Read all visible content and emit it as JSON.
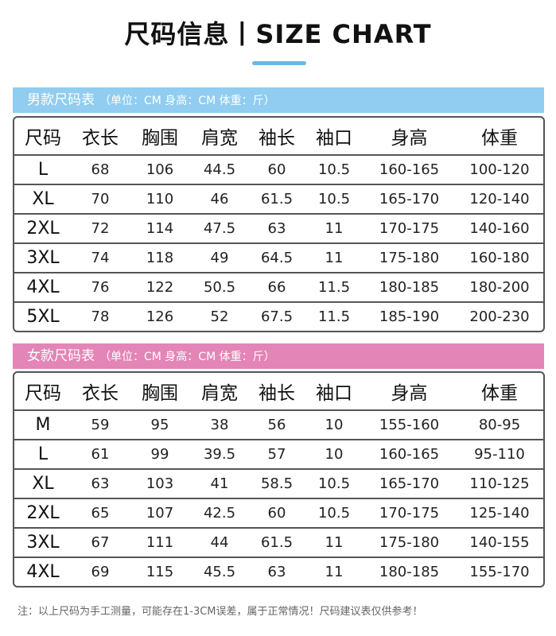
{
  "title": "尺码信息丨SIZE CHART",
  "men": {
    "header": "男款尺码表",
    "unit": "（单位：CM  身高：CM  体重：斤）",
    "columns": [
      "尺码",
      "衣长",
      "胸围",
      "肩宽",
      "袖长",
      "袖口",
      "身高",
      "体重"
    ],
    "rows": [
      [
        "L",
        "68",
        "106",
        "44.5",
        "60",
        "10.5",
        "160-165",
        "100-120"
      ],
      [
        "XL",
        "70",
        "110",
        "46",
        "61.5",
        "10.5",
        "165-170",
        "120-140"
      ],
      [
        "2XL",
        "72",
        "114",
        "47.5",
        "63",
        "11",
        "170-175",
        "140-160"
      ],
      [
        "3XL",
        "74",
        "118",
        "49",
        "64.5",
        "11",
        "175-180",
        "160-180"
      ],
      [
        "4XL",
        "76",
        "122",
        "50.5",
        "66",
        "11.5",
        "180-185",
        "180-200"
      ],
      [
        "5XL",
        "78",
        "126",
        "52",
        "67.5",
        "11.5",
        "185-190",
        "200-230"
      ]
    ]
  },
  "women": {
    "header": "女款尺码表",
    "unit": "（单位：CM  身高：CM  体重：斤）",
    "columns": [
      "尺码",
      "衣长",
      "胸围",
      "肩宽",
      "袖长",
      "袖口",
      "身高",
      "体重"
    ],
    "rows": [
      [
        "M",
        "59",
        "95",
        "38",
        "56",
        "10",
        "155-160",
        "80-95"
      ],
      [
        "L",
        "61",
        "99",
        "39.5",
        "57",
        "10",
        "160-165",
        "95-110"
      ],
      [
        "XL",
        "63",
        "103",
        "41",
        "58.5",
        "10.5",
        "165-170",
        "110-125"
      ],
      [
        "2XL",
        "65",
        "107",
        "42.5",
        "60",
        "10.5",
        "170-175",
        "125-140"
      ],
      [
        "3XL",
        "67",
        "111",
        "44",
        "61.5",
        "11",
        "175-180",
        "140-155"
      ],
      [
        "4XL",
        "69",
        "115",
        "45.5",
        "63",
        "11",
        "180-185",
        "155-170"
      ]
    ]
  },
  "footnote": "注：以上尺码为手工测量，可能存在1-3CM误差，属于正常情况！尺码建议表仅供参考！",
  "colors": {
    "men_header": "#90cdf0",
    "women_header": "#e385b6",
    "title_bar": "#6cb8e0"
  }
}
